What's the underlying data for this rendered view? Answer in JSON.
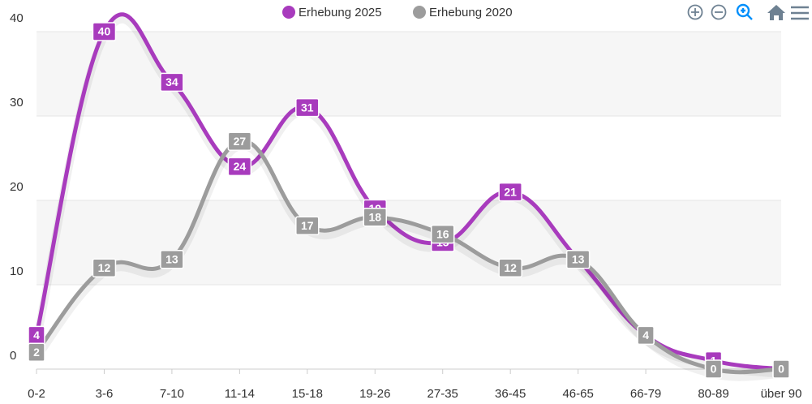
{
  "chart_data": {
    "type": "line",
    "categories": [
      "0-2",
      "3-6",
      "7-10",
      "11-14",
      "15-18",
      "19-26",
      "27-35",
      "36-45",
      "46-65",
      "66-79",
      "80-89",
      "über 90"
    ],
    "series": [
      {
        "name": "Erhebung 2025",
        "color": "#a83bbd",
        "values": [
          4,
          40,
          34,
          24,
          31,
          19,
          15,
          21,
          13,
          4,
          1,
          0
        ]
      },
      {
        "name": "Erhebung 2020",
        "color": "#9c9c9c",
        "values": [
          2,
          12,
          13,
          27,
          17,
          18,
          16,
          12,
          13,
          4,
          0,
          0
        ]
      }
    ],
    "ylim": [
      0,
      40
    ],
    "yticks": [
      0,
      10,
      20,
      30,
      40
    ],
    "grid": true,
    "legend": "top"
  }
}
